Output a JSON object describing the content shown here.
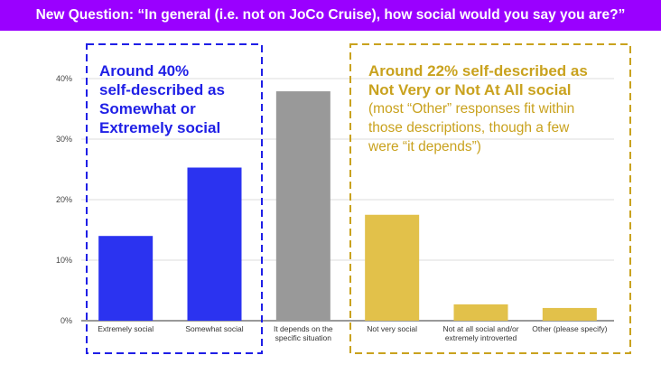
{
  "header": {
    "title": "New Question: “In general (i.e. not on JoCo Cruise), how social would you say you are?”"
  },
  "colors": {
    "banner": "#9a00ff",
    "blue": "#2b33f0",
    "gray": "#999999",
    "gold": "#e2c14a",
    "blue_text": "#1f1fe6",
    "gold_text": "#c9a21e"
  },
  "chart_data": {
    "type": "bar",
    "categories": [
      [
        "Extremely social"
      ],
      [
        "Somewhat social"
      ],
      [
        "It depends on the",
        "specific situation"
      ],
      [
        "Not very social"
      ],
      [
        "Not at all social and/or",
        "extremely introverted"
      ],
      [
        "Other (please specify)"
      ]
    ],
    "values": [
      14,
      25.3,
      37.9,
      17.5,
      2.7,
      2.1
    ],
    "bar_colors": [
      "#2b33f0",
      "#2b33f0",
      "#999999",
      "#e2c14a",
      "#e2c14a",
      "#e2c14a"
    ],
    "ylim": [
      0,
      40
    ],
    "yticks": [
      "0%",
      "10%",
      "20%",
      "30%",
      "40%"
    ],
    "grid": true
  },
  "annotations": {
    "left": [
      "Around 40%",
      "self-described as",
      "Somewhat or",
      "Extremely social"
    ],
    "right_title": [
      "Around 22% self-described as",
      "Not Very or Not At All social"
    ],
    "right_body": [
      "(most “Other” responses fit within",
      "those descriptions, though a few",
      "were “it depends”)"
    ]
  }
}
